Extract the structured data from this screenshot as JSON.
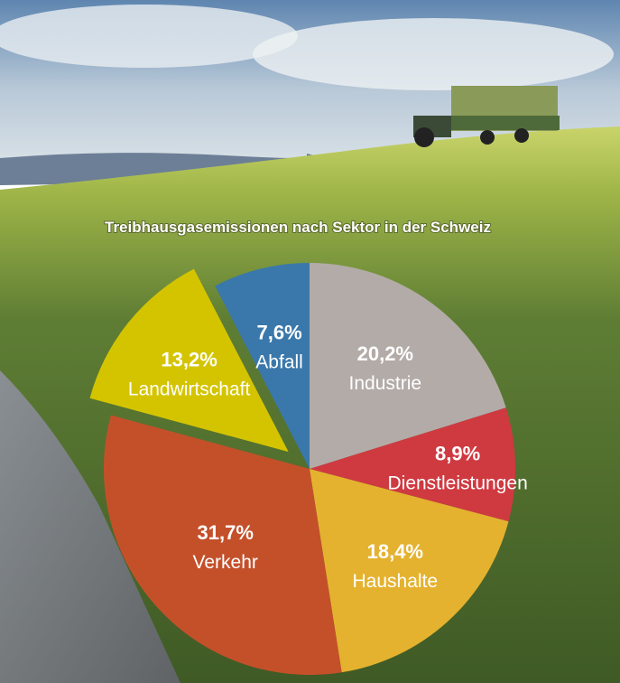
{
  "chart_data": {
    "type": "pie",
    "title": "Treibhausgasemissionen nach Sektor in der Schweiz",
    "start": "top",
    "direction": "clockwise",
    "slices": [
      {
        "label": "Industrie",
        "value": 20.2,
        "display": "20,2%",
        "color": "#b3aba8",
        "exploded": false
      },
      {
        "label": "Dienstleistungen",
        "value": 8.9,
        "display": "8,9%",
        "color": "#cf3a41",
        "exploded": false
      },
      {
        "label": "Haushalte",
        "value": 18.4,
        "display": "18,4%",
        "color": "#e5b22f",
        "exploded": false
      },
      {
        "label": "Verkehr",
        "value": 31.7,
        "display": "31,7%",
        "color": "#c4502a",
        "exploded": false
      },
      {
        "label": "Landwirtschaft",
        "value": 13.2,
        "display": "13,2%",
        "color": "#d4c400",
        "exploded": true
      },
      {
        "label": "Abfall",
        "value": 7.6,
        "display": "7,6%",
        "color": "#3a78ab",
        "exploded": false
      }
    ]
  }
}
